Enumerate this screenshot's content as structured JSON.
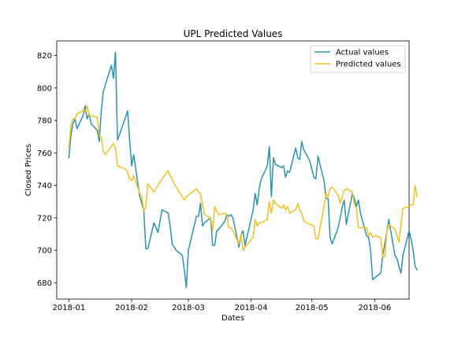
{
  "chart_data": {
    "type": "line",
    "title": "UPL Predicted Values",
    "xlabel": "Dates",
    "ylabel": "Closed Prices",
    "x_ticks": [
      "2018-01",
      "2018-02",
      "2018-03",
      "2018-04",
      "2018-05",
      "2018-06"
    ],
    "y_ticks": [
      680,
      700,
      720,
      740,
      760,
      780,
      800,
      820
    ],
    "xlim": [
      "2017-12-26",
      "2018-06-18"
    ],
    "ylim": [
      670,
      829
    ],
    "legend_position": "top-right",
    "grid": false,
    "series": [
      {
        "name": "Actual values",
        "color": "#2a93b0",
        "points": [
          [
            "2018-01-01",
            757
          ],
          [
            "2018-01-02",
            771
          ],
          [
            "2018-01-03",
            778
          ],
          [
            "2018-01-04",
            781
          ],
          [
            "2018-01-05",
            775
          ],
          [
            "2018-01-08",
            783
          ],
          [
            "2018-01-09",
            789
          ],
          [
            "2018-01-10",
            781
          ],
          [
            "2018-01-11",
            784
          ],
          [
            "2018-01-12",
            778
          ],
          [
            "2018-01-15",
            774
          ],
          [
            "2018-01-16",
            767
          ],
          [
            "2018-01-17",
            786
          ],
          [
            "2018-01-18",
            798
          ],
          [
            "2018-01-19",
            802
          ],
          [
            "2018-01-22",
            814
          ],
          [
            "2018-01-23",
            806
          ],
          [
            "2018-01-24",
            822
          ],
          [
            "2018-01-25",
            768
          ],
          [
            "2018-01-29",
            782
          ],
          [
            "2018-01-30",
            786
          ],
          [
            "2018-01-31",
            768
          ],
          [
            "2018-02-01",
            752
          ],
          [
            "2018-02-02",
            759
          ],
          [
            "2018-02-05",
            733
          ],
          [
            "2018-02-06",
            729
          ],
          [
            "2018-02-07",
            724
          ],
          [
            "2018-02-08",
            701
          ],
          [
            "2018-02-09",
            701
          ],
          [
            "2018-02-12",
            717
          ],
          [
            "2018-02-14",
            711
          ],
          [
            "2018-02-15",
            718
          ],
          [
            "2018-02-16",
            725
          ],
          [
            "2018-02-19",
            723
          ],
          [
            "2018-02-20",
            715
          ],
          [
            "2018-02-21",
            704
          ],
          [
            "2018-02-22",
            702
          ],
          [
            "2018-02-23",
            700
          ],
          [
            "2018-02-26",
            697
          ],
          [
            "2018-02-27",
            688
          ],
          [
            "2018-02-28",
            677
          ],
          [
            "2018-03-01",
            700
          ],
          [
            "2018-03-05",
            721
          ],
          [
            "2018-03-06",
            721
          ],
          [
            "2018-03-07",
            729
          ],
          [
            "2018-03-08",
            715
          ],
          [
            "2018-03-09",
            717
          ],
          [
            "2018-03-12",
            720
          ],
          [
            "2018-03-13",
            703
          ],
          [
            "2018-03-14",
            703
          ],
          [
            "2018-03-15",
            712
          ],
          [
            "2018-03-16",
            713
          ],
          [
            "2018-03-19",
            718
          ],
          [
            "2018-03-20",
            722
          ],
          [
            "2018-03-21",
            721
          ],
          [
            "2018-03-22",
            722
          ],
          [
            "2018-03-23",
            720
          ],
          [
            "2018-03-26",
            702
          ],
          [
            "2018-03-27",
            710
          ],
          [
            "2018-03-28",
            712
          ],
          [
            "2018-03-29",
            703
          ],
          [
            "2018-04-02",
            725
          ],
          [
            "2018-04-03",
            735
          ],
          [
            "2018-04-04",
            728
          ],
          [
            "2018-04-05",
            738
          ],
          [
            "2018-04-06",
            744
          ],
          [
            "2018-04-09",
            752
          ],
          [
            "2018-04-10",
            764
          ],
          [
            "2018-04-11",
            733
          ],
          [
            "2018-04-12",
            757
          ],
          [
            "2018-04-13",
            753
          ],
          [
            "2018-04-16",
            751
          ],
          [
            "2018-04-17",
            752
          ],
          [
            "2018-04-18",
            745
          ],
          [
            "2018-04-19",
            749
          ],
          [
            "2018-04-20",
            748
          ],
          [
            "2018-04-23",
            763
          ],
          [
            "2018-04-24",
            757
          ],
          [
            "2018-04-25",
            756
          ],
          [
            "2018-04-26",
            767
          ],
          [
            "2018-04-27",
            762
          ],
          [
            "2018-04-30",
            755
          ],
          [
            "2018-05-02",
            745
          ],
          [
            "2018-05-03",
            744
          ],
          [
            "2018-05-04",
            758
          ],
          [
            "2018-05-07",
            743
          ],
          [
            "2018-05-08",
            732
          ],
          [
            "2018-05-09",
            732
          ],
          [
            "2018-05-10",
            708
          ],
          [
            "2018-05-11",
            704
          ],
          [
            "2018-05-14",
            714
          ],
          [
            "2018-05-15",
            720
          ],
          [
            "2018-05-16",
            727
          ],
          [
            "2018-05-17",
            731
          ],
          [
            "2018-05-18",
            716
          ],
          [
            "2018-05-21",
            735
          ],
          [
            "2018-05-22",
            732
          ],
          [
            "2018-05-23",
            727
          ],
          [
            "2018-05-24",
            731
          ],
          [
            "2018-05-25",
            723
          ],
          [
            "2018-05-28",
            709
          ],
          [
            "2018-05-29",
            708
          ],
          [
            "2018-05-30",
            700
          ],
          [
            "2018-05-31",
            682
          ],
          [
            "2018-06-01",
            683
          ],
          [
            "2018-06-04",
            686
          ],
          [
            "2018-06-05",
            697
          ],
          [
            "2018-06-06",
            704
          ],
          [
            "2018-06-07",
            711
          ],
          [
            "2018-06-08",
            719
          ],
          [
            "2018-06-11",
            697
          ],
          [
            "2018-06-12",
            695
          ],
          [
            "2018-06-13",
            690
          ],
          [
            "2018-06-14",
            686
          ],
          [
            "2018-06-15",
            697
          ],
          [
            "2018-06-18",
            712
          ],
          [
            "2018-06-19",
            707
          ],
          [
            "2018-06-20",
            700
          ],
          [
            "2018-06-21",
            690
          ],
          [
            "2018-06-22",
            688
          ]
        ]
      },
      {
        "name": "Predicted values",
        "color": "#f0c020",
        "points": [
          [
            "2018-01-01",
            763
          ],
          [
            "2018-01-02",
            777
          ],
          [
            "2018-01-03",
            781
          ],
          [
            "2018-01-04",
            781
          ],
          [
            "2018-01-05",
            784
          ],
          [
            "2018-01-08",
            786
          ],
          [
            "2018-01-09",
            785
          ],
          [
            "2018-01-10",
            789
          ],
          [
            "2018-01-11",
            783
          ],
          [
            "2018-01-12",
            783
          ],
          [
            "2018-01-15",
            782
          ],
          [
            "2018-01-16",
            770
          ],
          [
            "2018-01-17",
            770
          ],
          [
            "2018-01-18",
            761
          ],
          [
            "2018-01-19",
            759
          ],
          [
            "2018-01-22",
            764
          ],
          [
            "2018-01-23",
            766
          ],
          [
            "2018-01-24",
            763
          ],
          [
            "2018-01-25",
            752
          ],
          [
            "2018-01-29",
            750
          ],
          [
            "2018-01-30",
            748
          ],
          [
            "2018-01-31",
            744
          ],
          [
            "2018-02-01",
            743
          ],
          [
            "2018-02-02",
            746
          ],
          [
            "2018-02-05",
            735
          ],
          [
            "2018-02-06",
            733
          ],
          [
            "2018-02-07",
            724
          ],
          [
            "2018-02-08",
            727
          ],
          [
            "2018-02-09",
            741
          ],
          [
            "2018-02-12",
            736
          ],
          [
            "2018-02-14",
            740
          ],
          [
            "2018-02-15",
            742
          ],
          [
            "2018-02-16",
            744
          ],
          [
            "2018-02-19",
            749
          ],
          [
            "2018-02-20",
            746
          ],
          [
            "2018-02-21",
            744
          ],
          [
            "2018-02-22",
            741
          ],
          [
            "2018-02-23",
            739
          ],
          [
            "2018-02-26",
            733
          ],
          [
            "2018-02-27",
            731
          ],
          [
            "2018-02-28",
            733
          ],
          [
            "2018-03-01",
            734
          ],
          [
            "2018-03-05",
            738
          ],
          [
            "2018-03-06",
            736
          ],
          [
            "2018-03-07",
            735
          ],
          [
            "2018-03-08",
            728
          ],
          [
            "2018-03-09",
            722
          ],
          [
            "2018-03-12",
            720
          ],
          [
            "2018-03-13",
            712
          ],
          [
            "2018-03-14",
            727
          ],
          [
            "2018-03-15",
            724
          ],
          [
            "2018-03-16",
            722
          ],
          [
            "2018-03-19",
            723
          ],
          [
            "2018-03-20",
            722
          ],
          [
            "2018-03-21",
            714
          ],
          [
            "2018-03-22",
            714
          ],
          [
            "2018-03-23",
            712
          ],
          [
            "2018-03-26",
            704
          ],
          [
            "2018-03-27",
            710
          ],
          [
            "2018-03-28",
            700
          ],
          [
            "2018-03-29",
            702
          ],
          [
            "2018-04-02",
            708
          ],
          [
            "2018-04-03",
            719
          ],
          [
            "2018-04-04",
            715
          ],
          [
            "2018-04-05",
            717
          ],
          [
            "2018-04-06",
            717
          ],
          [
            "2018-04-09",
            719
          ],
          [
            "2018-04-10",
            730
          ],
          [
            "2018-04-11",
            723
          ],
          [
            "2018-04-12",
            731
          ],
          [
            "2018-04-13",
            729
          ],
          [
            "2018-04-16",
            726
          ],
          [
            "2018-04-17",
            728
          ],
          [
            "2018-04-18",
            725
          ],
          [
            "2018-04-19",
            727
          ],
          [
            "2018-04-20",
            723
          ],
          [
            "2018-04-23",
            725
          ],
          [
            "2018-04-24",
            729
          ],
          [
            "2018-04-25",
            725
          ],
          [
            "2018-04-26",
            723
          ],
          [
            "2018-04-27",
            718
          ],
          [
            "2018-04-30",
            716
          ],
          [
            "2018-05-02",
            715
          ],
          [
            "2018-05-03",
            707
          ],
          [
            "2018-05-04",
            707
          ],
          [
            "2018-05-07",
            727
          ],
          [
            "2018-05-08",
            735
          ],
          [
            "2018-05-09",
            733
          ],
          [
            "2018-05-10",
            738
          ],
          [
            "2018-05-11",
            739
          ],
          [
            "2018-05-14",
            734
          ],
          [
            "2018-05-15",
            729
          ],
          [
            "2018-05-16",
            733
          ],
          [
            "2018-05-17",
            737
          ],
          [
            "2018-05-18",
            738
          ],
          [
            "2018-05-21",
            736
          ],
          [
            "2018-05-22",
            728
          ],
          [
            "2018-05-23",
            726
          ],
          [
            "2018-05-24",
            714
          ],
          [
            "2018-05-25",
            714
          ],
          [
            "2018-05-28",
            714
          ],
          [
            "2018-05-29",
            709
          ],
          [
            "2018-05-30",
            711
          ],
          [
            "2018-05-31",
            708
          ],
          [
            "2018-06-01",
            709
          ],
          [
            "2018-06-04",
            708
          ],
          [
            "2018-06-05",
            696
          ],
          [
            "2018-06-06",
            696
          ],
          [
            "2018-06-07",
            711
          ],
          [
            "2018-06-08",
            716
          ],
          [
            "2018-06-11",
            713
          ],
          [
            "2018-06-12",
            709
          ],
          [
            "2018-06-13",
            705
          ],
          [
            "2018-06-14",
            716
          ],
          [
            "2018-06-15",
            726
          ],
          [
            "2018-06-18",
            727
          ],
          [
            "2018-06-19",
            728
          ],
          [
            "2018-06-20",
            728
          ],
          [
            "2018-06-21",
            740
          ],
          [
            "2018-06-22",
            733
          ]
        ]
      }
    ]
  }
}
